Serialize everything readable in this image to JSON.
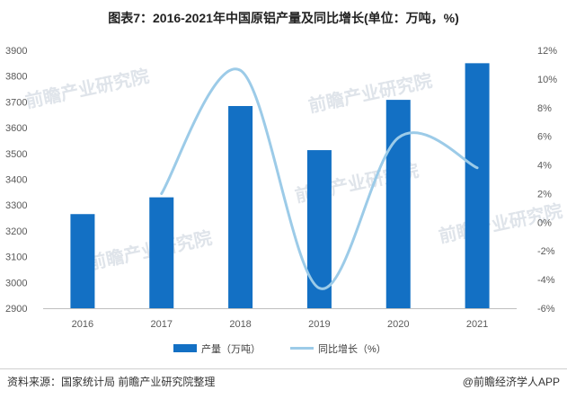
{
  "chart_data": {
    "type": "bar+line",
    "title": "图表7：2016-2021年中国原铝产量及同比增长(单位：万吨，%)",
    "categories": [
      "2016",
      "2017",
      "2018",
      "2019",
      "2020",
      "2021"
    ],
    "series": [
      {
        "name": "产量（万吨）",
        "type": "bar",
        "axis": "left",
        "values": [
          3265,
          3330,
          3684,
          3513,
          3708,
          3850
        ]
      },
      {
        "name": "同比增长（%）",
        "type": "line",
        "axis": "right",
        "smooth": true,
        "values": [
          null,
          2.0,
          10.6,
          -4.6,
          5.9,
          3.8
        ]
      }
    ],
    "y_left": {
      "min": 2900,
      "max": 3900,
      "step": 100,
      "ticks": [
        "2900",
        "3000",
        "3100",
        "3200",
        "3300",
        "3400",
        "3500",
        "3600",
        "3700",
        "3800",
        "3900"
      ]
    },
    "y_right": {
      "min": -6,
      "max": 12,
      "step": 2,
      "ticks": [
        "-6%",
        "-4%",
        "-2%",
        "0%",
        "2%",
        "4%",
        "6%",
        "8%",
        "10%",
        "12%"
      ]
    },
    "colors": {
      "bar": "#1370c4",
      "line": "#9ccbe8"
    },
    "legend_position": "bottom",
    "grid": false
  },
  "watermark": {
    "text": "前瞻产业研究院"
  },
  "footer": {
    "source": "资料来源：国家统计局 前瞻产业研究院整理",
    "brand": "@前瞻经济学人APP"
  }
}
